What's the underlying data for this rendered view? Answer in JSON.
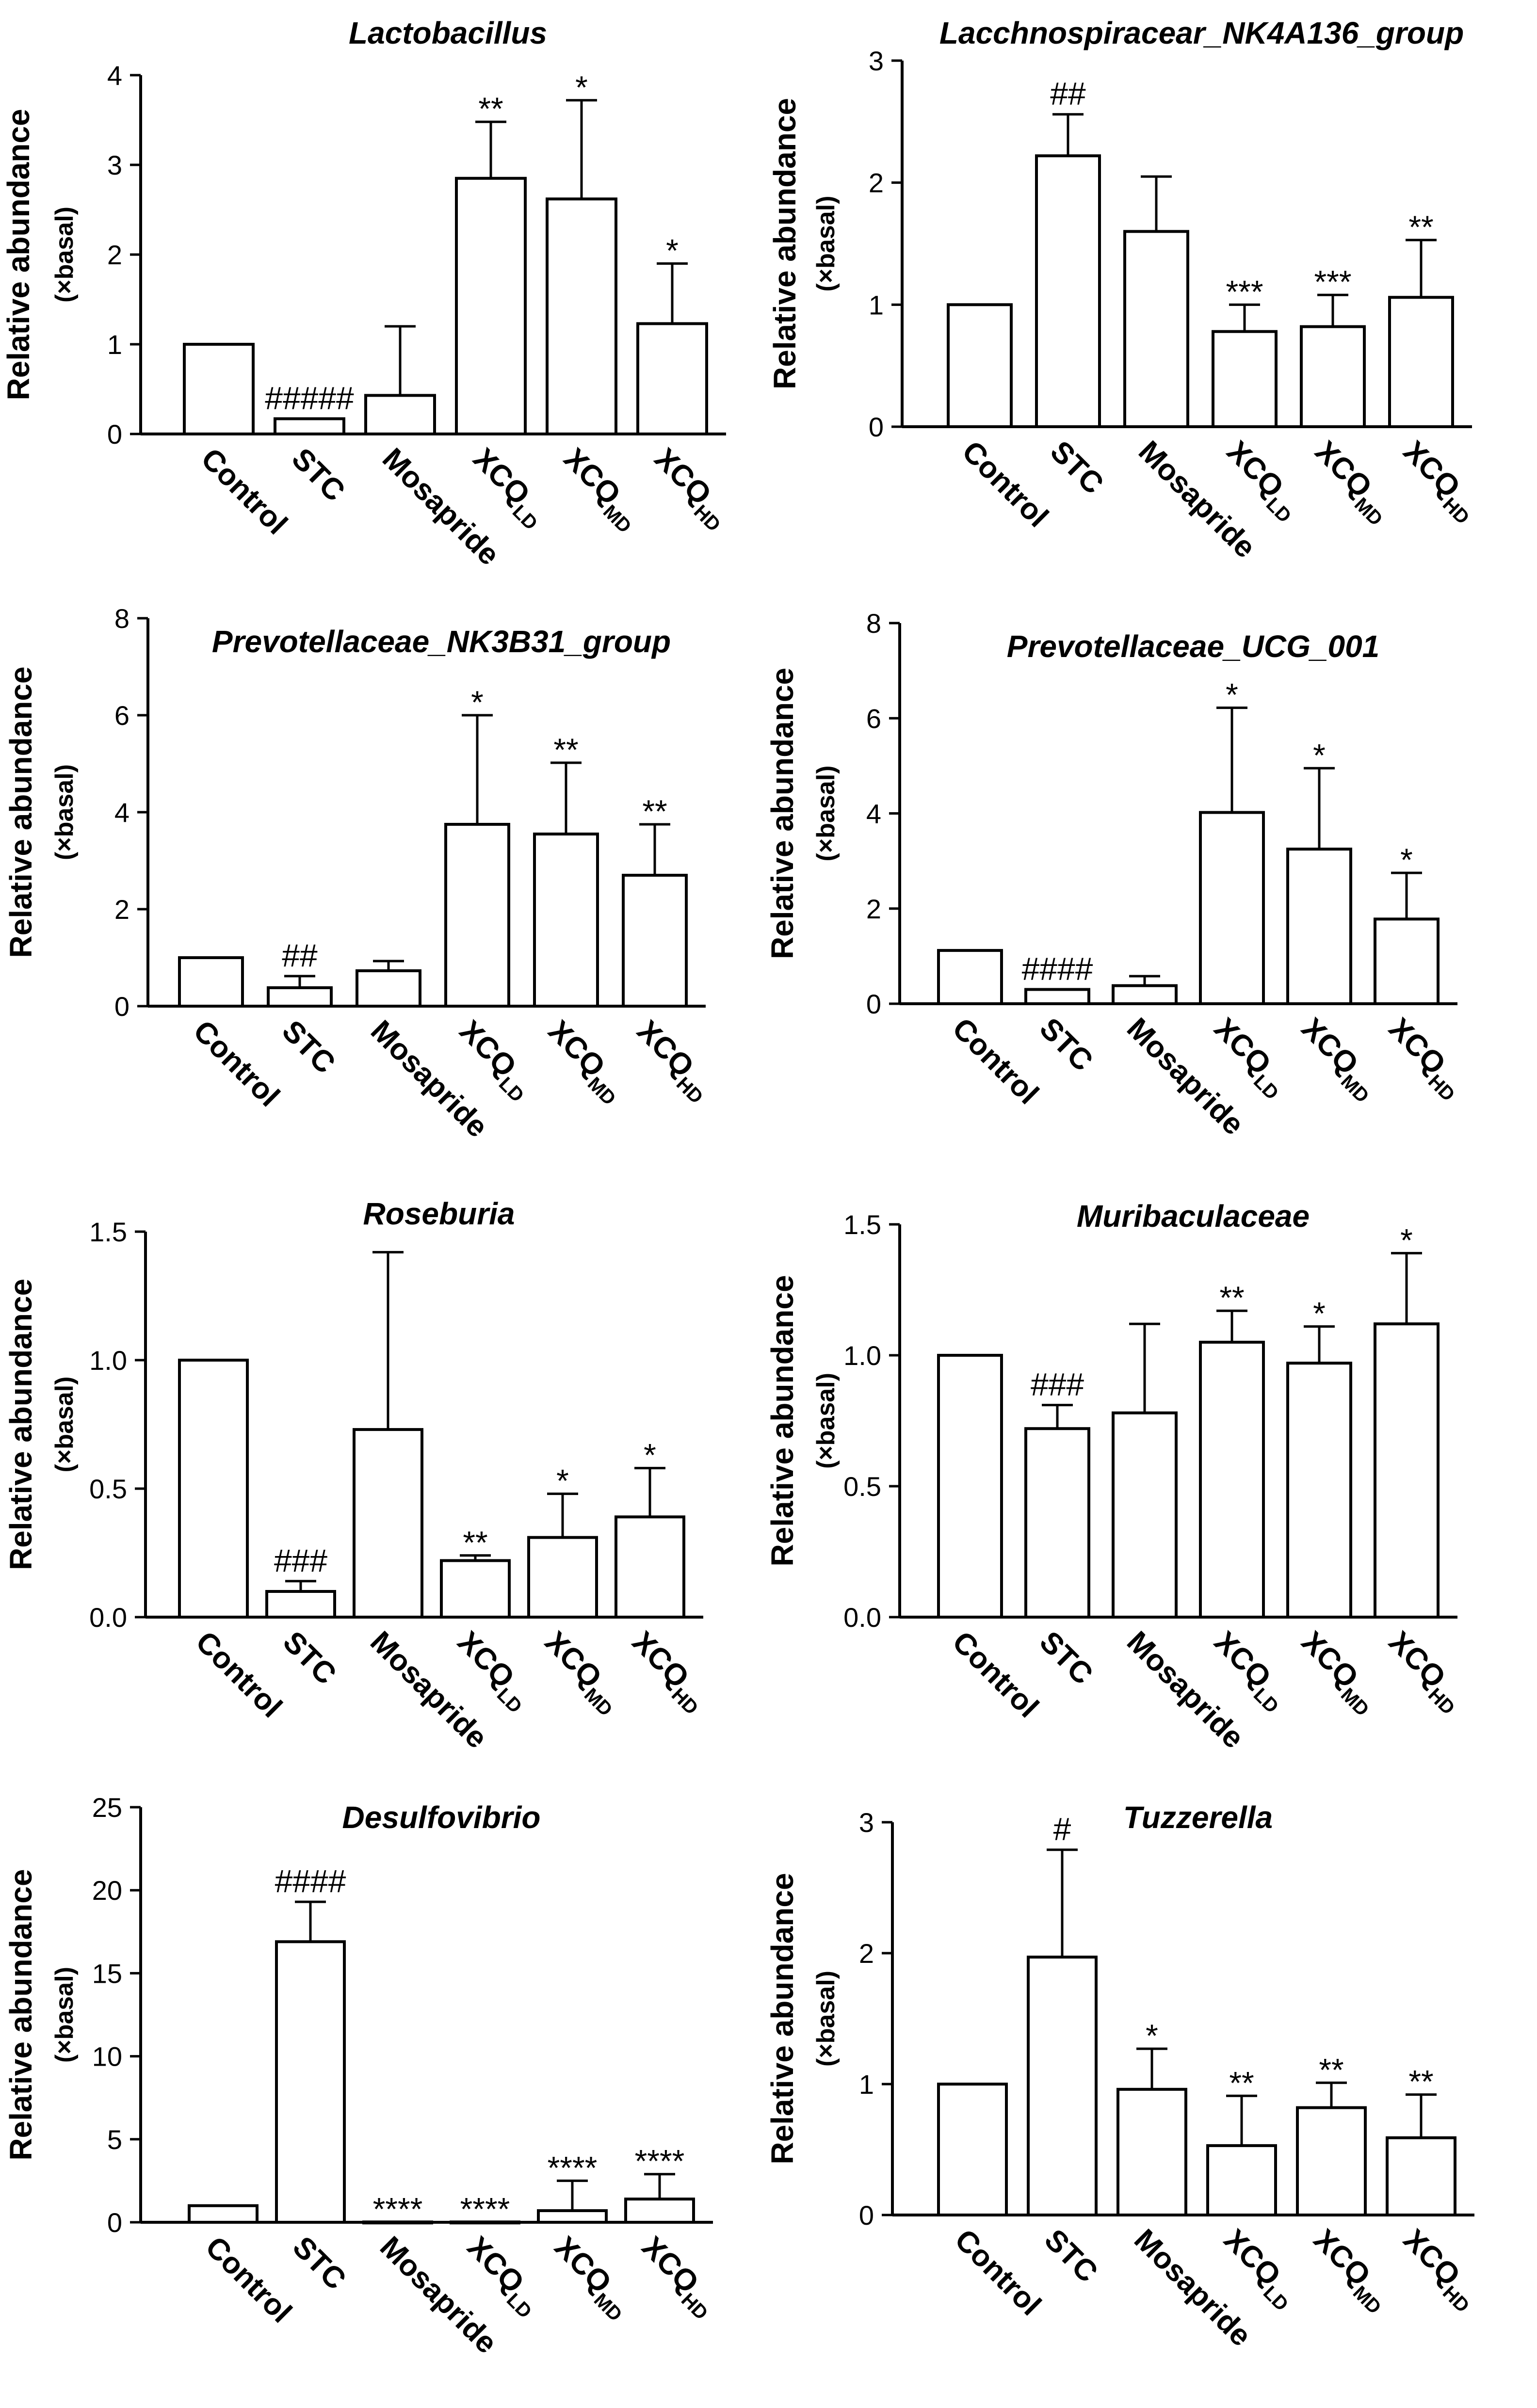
{
  "ylabel_main": "Relative abundance",
  "ylabel_sub": "(×basal)",
  "chart_data": [
    {
      "type": "bar",
      "title": "Lactobacillus",
      "categories": [
        "Control",
        "STC",
        "Mosapride",
        "XCQLD",
        "XCQMD",
        "XCQHD"
      ],
      "category_labels": [
        {
          "main": "Control",
          "sub": ""
        },
        {
          "main": "STC",
          "sub": ""
        },
        {
          "main": "Mosapride",
          "sub": ""
        },
        {
          "main": "XCQ",
          "sub": "LD"
        },
        {
          "main": "XCQ",
          "sub": "MD"
        },
        {
          "main": "XCQ",
          "sub": "HD"
        }
      ],
      "values": [
        1.0,
        0.17,
        0.43,
        2.85,
        2.62,
        1.23
      ],
      "errors": [
        0,
        0,
        0.77,
        0.63,
        1.1,
        0.67
      ],
      "significance": [
        "",
        "#####",
        "",
        "**",
        "*",
        "*"
      ],
      "ylim": [
        0,
        4
      ],
      "yticks": [
        "0",
        "1",
        "2",
        "3",
        "4"
      ],
      "ylabel": "Relative abundance (×basal)"
    },
    {
      "type": "bar",
      "title": "Lacchnospiracear_NK4A136_group",
      "categories": [
        "Control",
        "STC",
        "Mosapride",
        "XCQLD",
        "XCQMD",
        "XCQHD"
      ],
      "category_labels": [
        {
          "main": "Control",
          "sub": ""
        },
        {
          "main": "STC",
          "sub": ""
        },
        {
          "main": "Mosapride",
          "sub": ""
        },
        {
          "main": "XCQ",
          "sub": "LD"
        },
        {
          "main": "XCQ",
          "sub": "MD"
        },
        {
          "main": "XCQ",
          "sub": "HD"
        }
      ],
      "values": [
        1.0,
        2.22,
        1.6,
        0.78,
        0.82,
        1.06
      ],
      "errors": [
        0,
        0.34,
        0.45,
        0.22,
        0.26,
        0.47
      ],
      "significance": [
        "",
        "##",
        "",
        "***",
        "***",
        "**"
      ],
      "ylim": [
        0,
        3
      ],
      "yticks": [
        "0",
        "1",
        "2",
        "3"
      ],
      "ylabel": "Relative abundance (×basal)"
    },
    {
      "type": "bar",
      "title": "Prevotellaceae_NK3B31_group",
      "categories": [
        "Control",
        "STC",
        "Mosapride",
        "XCQLD",
        "XCQMD",
        "XCQHD"
      ],
      "category_labels": [
        {
          "main": "Control",
          "sub": ""
        },
        {
          "main": "STC",
          "sub": ""
        },
        {
          "main": "Mosapride",
          "sub": ""
        },
        {
          "main": "XCQ",
          "sub": "LD"
        },
        {
          "main": "XCQ",
          "sub": "MD"
        },
        {
          "main": "XCQ",
          "sub": "HD"
        }
      ],
      "values": [
        1.0,
        0.38,
        0.73,
        3.75,
        3.55,
        2.7
      ],
      "errors": [
        0,
        0.24,
        0.2,
        2.25,
        1.47,
        1.05
      ],
      "significance": [
        "",
        "##",
        "",
        "*",
        "**",
        "**"
      ],
      "ylim": [
        0,
        8
      ],
      "yticks": [
        "0",
        "2",
        "4",
        "6",
        "8"
      ],
      "ylabel": "Relative abundance (×basal)"
    },
    {
      "type": "bar",
      "title": "Prevotellaceae_UCG_001",
      "categories": [
        "Control",
        "STC",
        "Mosapride",
        "XCQLD",
        "XCQMD",
        "XCQHD"
      ],
      "category_labels": [
        {
          "main": "Control",
          "sub": ""
        },
        {
          "main": "STC",
          "sub": ""
        },
        {
          "main": "Mosapride",
          "sub": ""
        },
        {
          "main": "XCQ",
          "sub": "LD"
        },
        {
          "main": "XCQ",
          "sub": "MD"
        },
        {
          "main": "XCQ",
          "sub": "HD"
        }
      ],
      "values": [
        1.12,
        0.3,
        0.38,
        4.02,
        3.25,
        1.78
      ],
      "errors": [
        0,
        0,
        0.2,
        2.2,
        1.7,
        0.97
      ],
      "significance": [
        "",
        "####",
        "",
        "*",
        "*",
        "*"
      ],
      "ylim": [
        0,
        8
      ],
      "yticks": [
        "0",
        "2",
        "4",
        "6",
        "8"
      ],
      "ylabel": "Relative abundance (×basal)"
    },
    {
      "type": "bar",
      "title": "Roseburia",
      "categories": [
        "Control",
        "STC",
        "Mosapride",
        "XCQLD",
        "XCQMD",
        "XCQHD"
      ],
      "category_labels": [
        {
          "main": "Control",
          "sub": ""
        },
        {
          "main": "STC",
          "sub": ""
        },
        {
          "main": "Mosapride",
          "sub": ""
        },
        {
          "main": "XCQ",
          "sub": "LD"
        },
        {
          "main": "XCQ",
          "sub": "MD"
        },
        {
          "main": "XCQ",
          "sub": "HD"
        }
      ],
      "values": [
        1.0,
        0.1,
        0.73,
        0.22,
        0.31,
        0.39
      ],
      "errors": [
        0,
        0.04,
        0.69,
        0.02,
        0.17,
        0.19
      ],
      "significance": [
        "",
        "###",
        "",
        "**",
        "*",
        "*"
      ],
      "ylim": [
        0,
        1.5
      ],
      "yticks": [
        "0.0",
        "0.5",
        "1.0",
        "1.5"
      ],
      "ylabel": "Relative abundance (×basal)"
    },
    {
      "type": "bar",
      "title": "Muribaculaceae",
      "categories": [
        "Control",
        "STC",
        "Mosapride",
        "XCQLD",
        "XCQMD",
        "XCQHD"
      ],
      "category_labels": [
        {
          "main": "Control",
          "sub": ""
        },
        {
          "main": "STC",
          "sub": ""
        },
        {
          "main": "Mosapride",
          "sub": ""
        },
        {
          "main": "XCQ",
          "sub": "LD"
        },
        {
          "main": "XCQ",
          "sub": "MD"
        },
        {
          "main": "XCQ",
          "sub": "HD"
        }
      ],
      "values": [
        1.0,
        0.72,
        0.78,
        1.05,
        0.97,
        1.12
      ],
      "errors": [
        0,
        0.09,
        0.34,
        0.12,
        0.14,
        0.27
      ],
      "significance": [
        "",
        "###",
        "",
        "**",
        "*",
        "*"
      ],
      "ylim": [
        0,
        1.5
      ],
      "yticks": [
        "0.0",
        "0.5",
        "1.0",
        "1.5"
      ],
      "ylabel": "Relative abundance (×basal)"
    },
    {
      "type": "bar",
      "title": "Desulfovibrio",
      "categories": [
        "Control",
        "STC",
        "Mosapride",
        "XCQLD",
        "XCQMD",
        "XCQHD"
      ],
      "category_labels": [
        {
          "main": "Control",
          "sub": ""
        },
        {
          "main": "STC",
          "sub": ""
        },
        {
          "main": "Mosapride",
          "sub": ""
        },
        {
          "main": "XCQ",
          "sub": "LD"
        },
        {
          "main": "XCQ",
          "sub": "MD"
        },
        {
          "main": "XCQ",
          "sub": "HD"
        }
      ],
      "values": [
        1.0,
        16.9,
        0.02,
        0.02,
        0.7,
        1.4
      ],
      "errors": [
        0,
        2.4,
        0,
        0,
        1.8,
        1.5
      ],
      "significance": [
        "",
        "####",
        "****",
        "****",
        "****",
        "****"
      ],
      "ylim": [
        0,
        25
      ],
      "yticks": [
        "0",
        "5",
        "10",
        "15",
        "20",
        "25"
      ],
      "ylabel": "Relative abundance (×basal)"
    },
    {
      "type": "bar",
      "title": "Tuzzerella",
      "categories": [
        "Control",
        "STC",
        "Mosapride",
        "XCQLD",
        "XCQMD",
        "XCQHD"
      ],
      "category_labels": [
        {
          "main": "Control",
          "sub": ""
        },
        {
          "main": "STC",
          "sub": ""
        },
        {
          "main": "Mosapride",
          "sub": ""
        },
        {
          "main": "XCQ",
          "sub": "LD"
        },
        {
          "main": "XCQ",
          "sub": "MD"
        },
        {
          "main": "XCQ",
          "sub": "HD"
        }
      ],
      "values": [
        1.0,
        1.97,
        0.96,
        0.53,
        0.82,
        0.59
      ],
      "errors": [
        0,
        0.82,
        0.31,
        0.38,
        0.19,
        0.33
      ],
      "significance": [
        "",
        "#",
        "*",
        "**",
        "**",
        "**"
      ],
      "ylim": [
        0,
        3
      ],
      "yticks": [
        "0",
        "1",
        "2",
        "3"
      ],
      "ylabel": "Relative abundance (×basal)"
    }
  ]
}
